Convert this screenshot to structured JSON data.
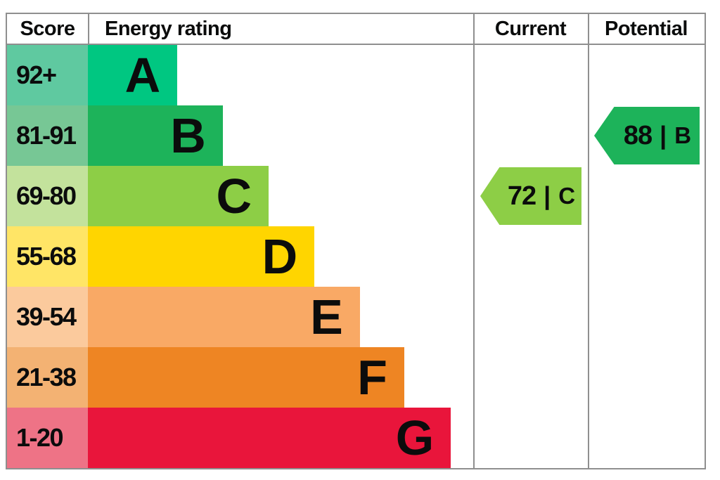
{
  "headers": {
    "score": "Score",
    "energy_rating": "Energy rating",
    "current": "Current",
    "potential": "Potential"
  },
  "chart_data": {
    "type": "bar",
    "title": "Energy efficiency rating (EPC) chart",
    "legend_position": "none",
    "separator": "|",
    "bands": [
      {
        "range": "92+",
        "letter": "A",
        "color": "#00c781",
        "score_bg": "#5fc9a0",
        "width_pct": 23.2
      },
      {
        "range": "81-91",
        "letter": "B",
        "color": "#1db35a",
        "score_bg": "#77c795",
        "width_pct": 35.0
      },
      {
        "range": "69-80",
        "letter": "C",
        "color": "#8dce46",
        "score_bg": "#c3e29c",
        "width_pct": 46.9
      },
      {
        "range": "55-68",
        "letter": "D",
        "color": "#ffd500",
        "score_bg": "#ffe566",
        "width_pct": 58.8
      },
      {
        "range": "39-54",
        "letter": "E",
        "color": "#f9a965",
        "score_bg": "#fbca9d",
        "width_pct": 70.6
      },
      {
        "range": "21-38",
        "letter": "F",
        "color": "#ee8523",
        "score_bg": "#f3b273",
        "width_pct": 82.1
      },
      {
        "range": "1-20",
        "letter": "G",
        "color": "#e9153b",
        "score_bg": "#ee7386",
        "width_pct": 94.2
      }
    ],
    "current": {
      "score": "72",
      "letter": "C",
      "band_index": 2,
      "color": "#8dce46"
    },
    "potential": {
      "score": "88",
      "letter": "B",
      "band_index": 1,
      "color": "#1db35a"
    }
  }
}
